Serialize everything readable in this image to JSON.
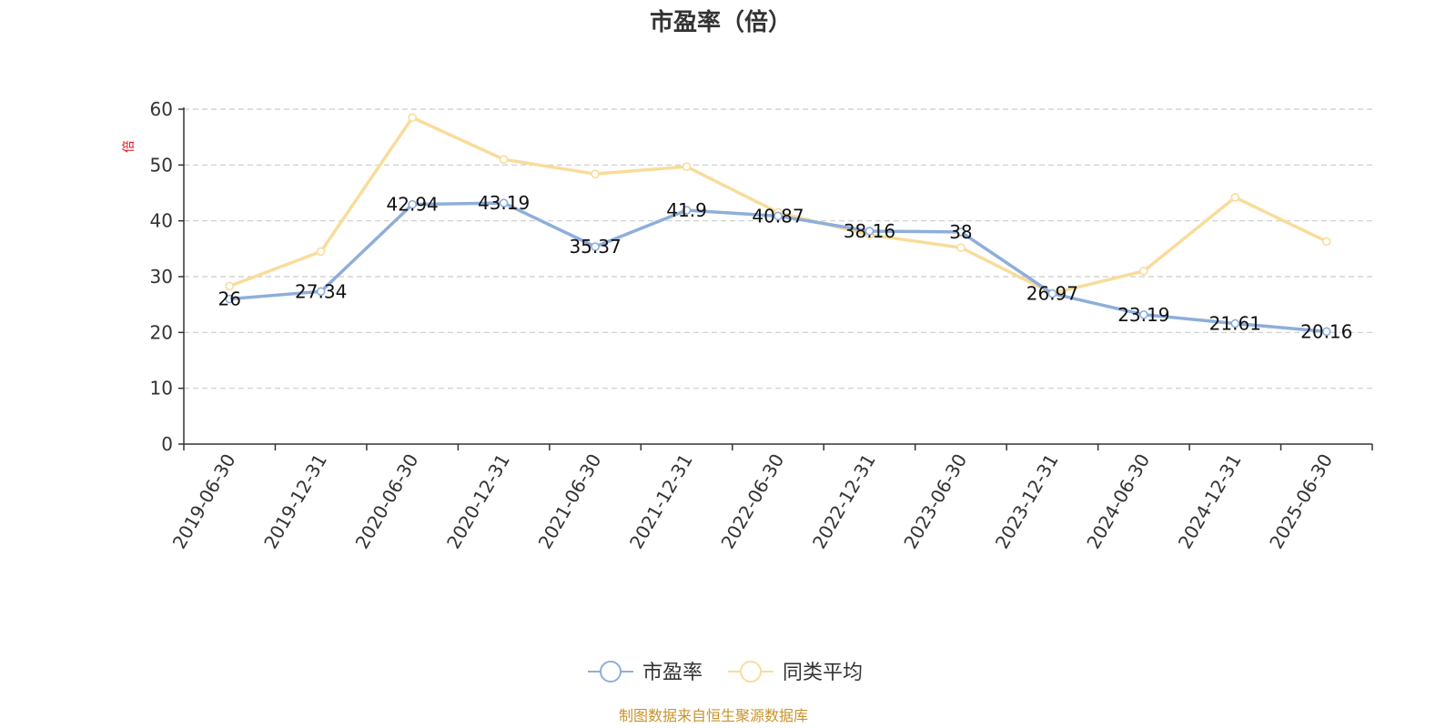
{
  "chart_data": {
    "type": "line",
    "title": "市盈率（倍）",
    "ylabel": "倍",
    "xlabel": "",
    "categories": [
      "2019-06-30",
      "2019-12-31",
      "2020-06-30",
      "2020-12-31",
      "2021-06-30",
      "2021-12-31",
      "2022-06-30",
      "2022-12-31",
      "2023-06-30",
      "2023-12-31",
      "2024-06-30",
      "2024-12-31",
      "2025-06-30"
    ],
    "yticks": [
      "0",
      "10",
      "20",
      "30",
      "40",
      "50",
      "60"
    ],
    "ylim": [
      0,
      60
    ],
    "grid": true,
    "legend_position": "bottom-center",
    "series": [
      {
        "name": "市盈率",
        "color": "#8eaedb",
        "values": [
          26,
          27.34,
          42.94,
          43.19,
          35.37,
          41.9,
          40.87,
          38.16,
          38,
          26.97,
          23.19,
          21.61,
          20.16
        ],
        "labels": [
          "26",
          "27.34",
          "42.94",
          "43.19",
          "35.37",
          "41.9",
          "40.87",
          "38.16",
          "38",
          "26.97",
          "23.19",
          "21.61",
          "20.16"
        ]
      },
      {
        "name": "同类平均",
        "color": "#f9dc9b",
        "values": [
          28.3,
          34.5,
          58.5,
          51,
          48.4,
          49.7,
          41.5,
          37.5,
          35.2,
          27,
          31,
          44.2,
          36.3
        ]
      }
    ]
  },
  "source_note": "制图数据来自恒生聚源数据库"
}
